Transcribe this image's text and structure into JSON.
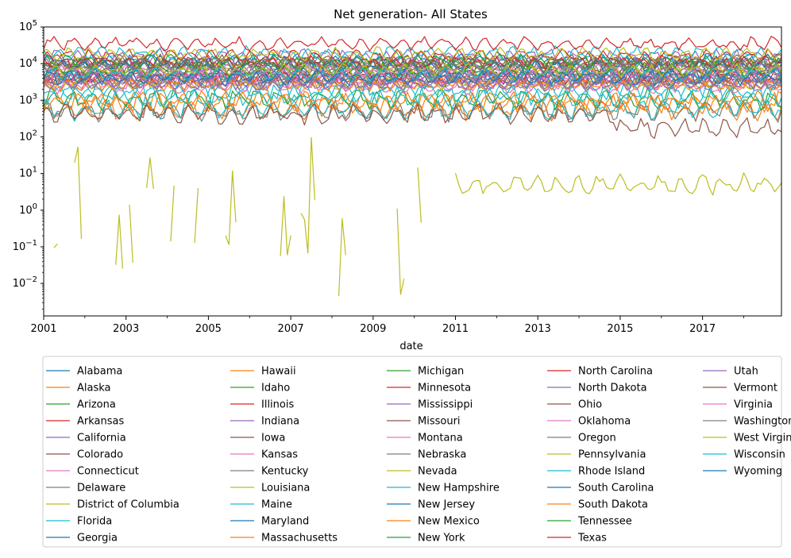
{
  "colors": [
    "#1f77b4",
    "#ff7f0e",
    "#2ca02c",
    "#d62728",
    "#9467bd",
    "#8c564b",
    "#e377c2",
    "#7f7f7f",
    "#bcbd22",
    "#17becf"
  ],
  "chart_data": {
    "type": "line",
    "title": "Net generation- All States",
    "xlabel": "date",
    "ylabel": "",
    "y_scale": "log",
    "ylim": [
      0.0013,
      100000
    ],
    "xlim": [
      "2001-01",
      "2018-12"
    ],
    "grid": false,
    "legend_position": "bottom, outside plot, 5 columns",
    "x_ticks": [
      "2001",
      "2003",
      "2005",
      "2007",
      "2009",
      "2011",
      "2013",
      "2015",
      "2017"
    ],
    "y_ticks": [
      {
        "value": 0.01,
        "base": "10",
        "exp": "−2"
      },
      {
        "value": 0.1,
        "base": "10",
        "exp": "−1"
      },
      {
        "value": 1,
        "base": "10",
        "exp": "0"
      },
      {
        "value": 10,
        "base": "10",
        "exp": "1"
      },
      {
        "value": 100,
        "base": "10",
        "exp": "2"
      },
      {
        "value": 1000,
        "base": "10",
        "exp": "3"
      },
      {
        "value": 10000,
        "base": "10",
        "exp": "4"
      },
      {
        "value": 100000,
        "base": "10",
        "exp": "5"
      }
    ],
    "series": [
      {
        "name": "Alabama",
        "level": 12000
      },
      {
        "name": "Alaska",
        "level": 550
      },
      {
        "name": "Arizona",
        "level": 9000
      },
      {
        "name": "Arkansas",
        "level": 4500
      },
      {
        "name": "California",
        "level": 16000
      },
      {
        "name": "Colorado",
        "level": 4200
      },
      {
        "name": "Connecticut",
        "level": 2700
      },
      {
        "name": "Delaware",
        "level": 500
      },
      {
        "name": "District of Columbia",
        "level": 5,
        "sparse_until": "2010-12"
      },
      {
        "name": "Florida",
        "level": 19000
      },
      {
        "name": "Georgia",
        "level": 10500
      },
      {
        "name": "Hawaii",
        "level": 900
      },
      {
        "name": "Idaho",
        "level": 1100
      },
      {
        "name": "Illinois",
        "level": 16000
      },
      {
        "name": "Indiana",
        "level": 10000
      },
      {
        "name": "Iowa",
        "level": 4000
      },
      {
        "name": "Kansas",
        "level": 4000
      },
      {
        "name": "Kentucky",
        "level": 7500
      },
      {
        "name": "Louisiana",
        "level": 8500
      },
      {
        "name": "Maine",
        "level": 1400
      },
      {
        "name": "Maryland",
        "level": 3800
      },
      {
        "name": "Massachusetts",
        "level": 2800
      },
      {
        "name": "Michigan",
        "level": 9000
      },
      {
        "name": "Minnesota",
        "level": 4500
      },
      {
        "name": "Mississippi",
        "level": 4300
      },
      {
        "name": "Missouri",
        "level": 7000
      },
      {
        "name": "Montana",
        "level": 2300
      },
      {
        "name": "Nebraska",
        "level": 3000
      },
      {
        "name": "Nevada",
        "level": 3000
      },
      {
        "name": "New Hampshire",
        "level": 1600
      },
      {
        "name": "New Jersey",
        "level": 5500
      },
      {
        "name": "New Mexico",
        "level": 2800
      },
      {
        "name": "New York",
        "level": 11500
      },
      {
        "name": "North Carolina",
        "level": 10500
      },
      {
        "name": "North Dakota",
        "level": 2800
      },
      {
        "name": "Ohio",
        "level": 11500
      },
      {
        "name": "Oklahoma",
        "level": 6000
      },
      {
        "name": "Oregon",
        "level": 4500
      },
      {
        "name": "Pennsylvania",
        "level": 18000
      },
      {
        "name": "Rhode Island",
        "level": 550
      },
      {
        "name": "South Carolina",
        "level": 8000
      },
      {
        "name": "South Dakota",
        "level": 900
      },
      {
        "name": "Tennessee",
        "level": 6500
      },
      {
        "name": "Texas",
        "level": 35000
      },
      {
        "name": "Utah",
        "level": 3300
      },
      {
        "name": "Vermont",
        "level": 420,
        "declines_from": "2014-12"
      },
      {
        "name": "Virginia",
        "level": 6200
      },
      {
        "name": "Washington",
        "level": 9000
      },
      {
        "name": "West Virginia",
        "level": 6500
      },
      {
        "name": "Wisconsin",
        "level": 5000
      },
      {
        "name": "Wyoming",
        "level": 4000
      }
    ]
  }
}
